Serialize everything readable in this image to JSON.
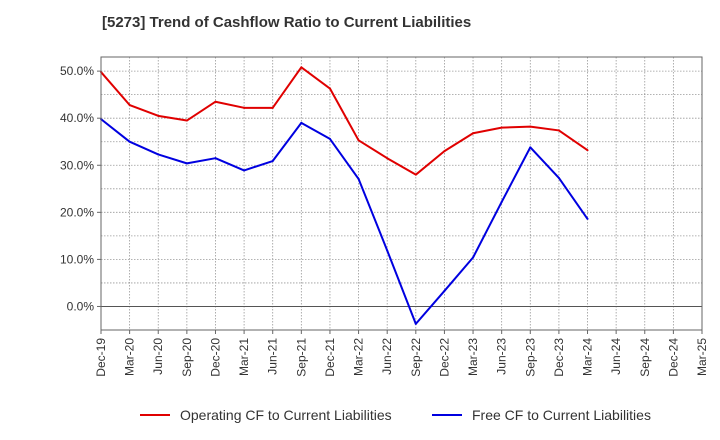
{
  "chart_data": {
    "type": "line",
    "title": "[5273]  Trend of Cashflow Ratio to Current Liabilities",
    "xlabel": "",
    "ylabel": "",
    "categories": [
      "Dec-19",
      "Mar-20",
      "Jun-20",
      "Sep-20",
      "Dec-20",
      "Mar-21",
      "Jun-21",
      "Sep-21",
      "Dec-21",
      "Mar-22",
      "Jun-22",
      "Sep-22",
      "Dec-22",
      "Mar-23",
      "Jun-23",
      "Sep-23",
      "Dec-23",
      "Mar-24",
      "Jun-24",
      "Sep-24",
      "Dec-24",
      "Mar-25"
    ],
    "ylim": [
      -5,
      53
    ],
    "yticks": [
      0,
      10,
      20,
      30,
      40,
      50
    ],
    "ytick_labels": [
      "0.0%",
      "10.0%",
      "20.0%",
      "30.0%",
      "40.0%",
      "50.0%"
    ],
    "grid": true,
    "legend_position": "bottom",
    "series": [
      {
        "name": "Operating CF to Current Liabilities",
        "color": "#e00000",
        "values": [
          49.8,
          42.8,
          40.5,
          39.5,
          43.5,
          42.2,
          42.2,
          50.8,
          46.3,
          35.3,
          31.5,
          28.0,
          33.0,
          36.8,
          38.0,
          38.2,
          37.4,
          33.2,
          null,
          null,
          null,
          null
        ]
      },
      {
        "name": "Free CF to Current Liabilities",
        "color": "#0000e0",
        "values": [
          39.8,
          35.0,
          32.3,
          30.4,
          31.5,
          28.9,
          30.9,
          39.0,
          35.6,
          27.1,
          11.9,
          -3.7,
          3.3,
          10.4,
          22.2,
          33.8,
          27.3,
          18.6,
          null,
          null,
          null,
          null
        ]
      }
    ]
  }
}
